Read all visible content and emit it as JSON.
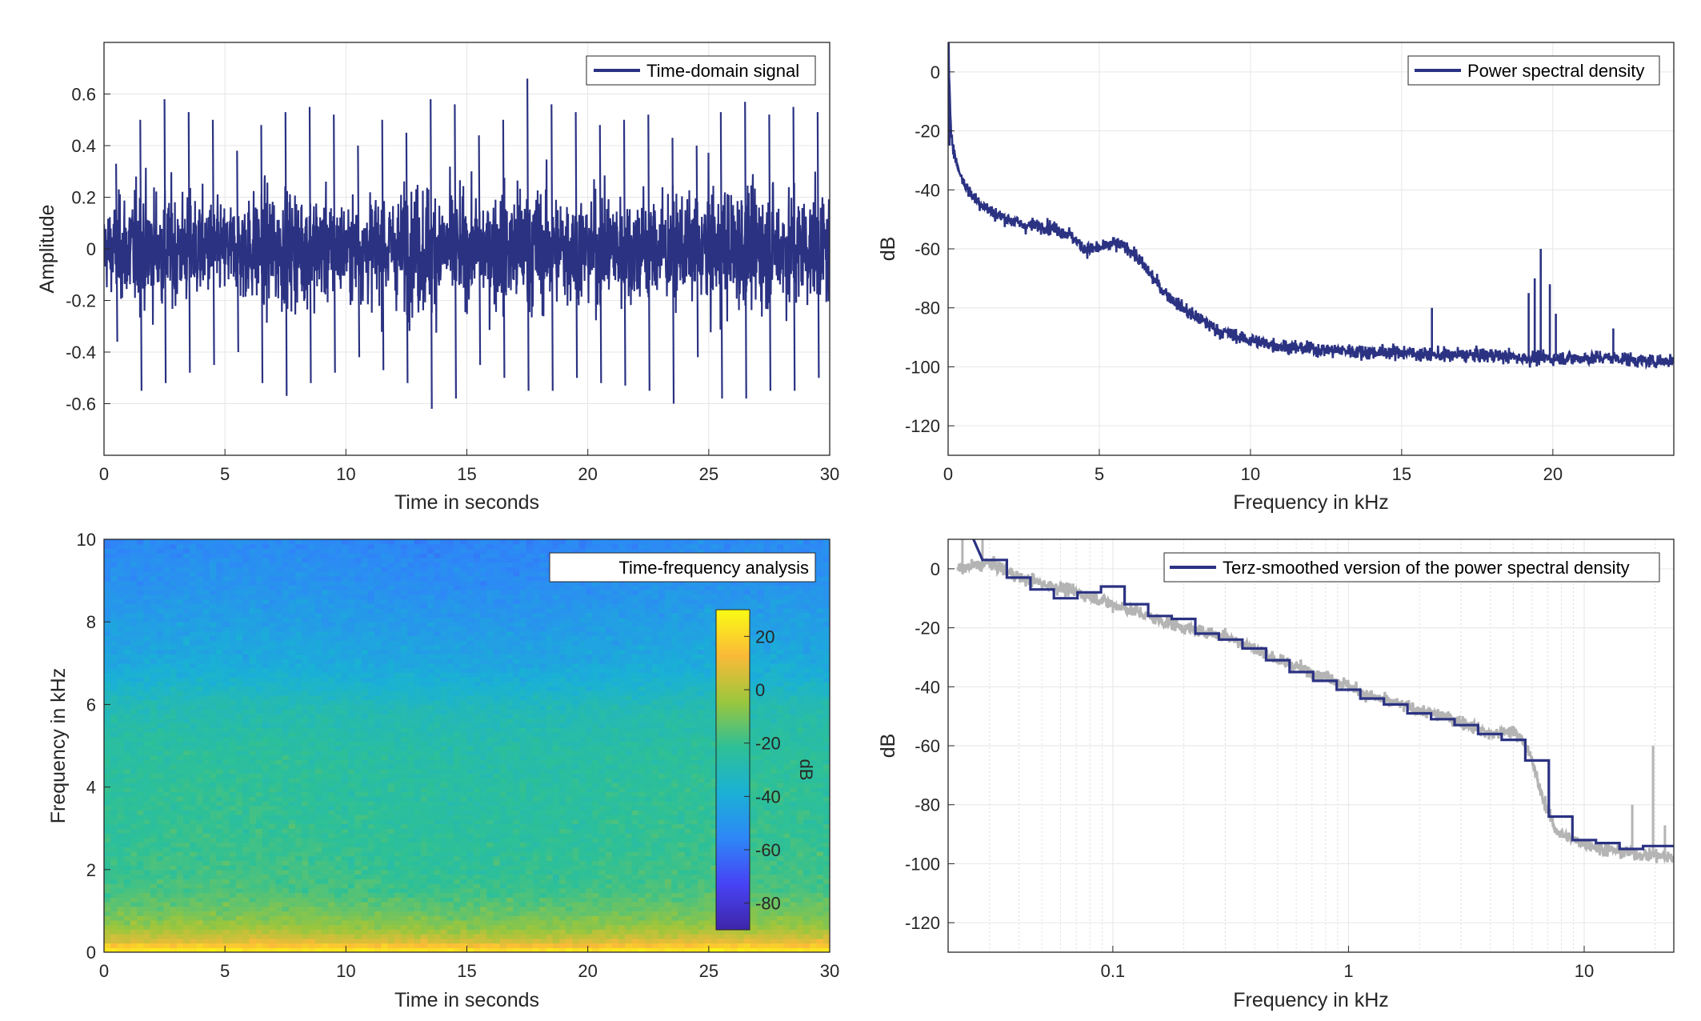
{
  "colors": {
    "series": "#2b3282",
    "raw_psd": "#b4b4b4",
    "grid": "#e6e6e6",
    "axes": "#262626",
    "colormap": [
      "#3e26a8",
      "#4743f5",
      "#2e87f7",
      "#1ab1d5",
      "#2ec096",
      "#9cc63c",
      "#fbba38",
      "#f9fb14"
    ]
  },
  "chart_data": [
    {
      "id": "time",
      "type": "line",
      "xlabel": "Time in seconds",
      "ylabel": "Amplitude",
      "xlim": [
        0,
        30
      ],
      "ylim": [
        -0.8,
        0.8
      ],
      "xticks": [
        0,
        5,
        10,
        15,
        20,
        25,
        30
      ],
      "yticks": [
        -0.6,
        -0.4,
        -0.2,
        0,
        0.2,
        0.4,
        0.6
      ],
      "grid": true,
      "legend": {
        "placement": "top-right",
        "entries": [
          "Time-domain signal"
        ]
      },
      "series": [
        {
          "name": "Time-domain signal",
          "description_note": "dense noise signal, envelope (max/min per second) listed",
          "x": [
            0,
            1,
            2,
            3,
            4,
            5,
            6,
            7,
            8,
            9,
            10,
            11,
            12,
            13,
            14,
            15,
            16,
            17,
            18,
            19,
            20,
            21,
            22,
            23,
            24,
            25,
            26,
            27,
            28,
            29,
            30
          ],
          "upper": [
            0.33,
            0.5,
            0.58,
            0.53,
            0.5,
            0.38,
            0.48,
            0.53,
            0.55,
            0.52,
            0.4,
            0.5,
            0.45,
            0.58,
            0.56,
            0.44,
            0.5,
            0.66,
            0.56,
            0.53,
            0.48,
            0.5,
            0.52,
            0.43,
            0.4,
            0.53,
            0.57,
            0.52,
            0.55,
            0.53,
            0.52
          ],
          "lower": [
            -0.36,
            -0.55,
            -0.52,
            -0.48,
            -0.45,
            -0.4,
            -0.52,
            -0.57,
            -0.52,
            -0.48,
            -0.42,
            -0.47,
            -0.52,
            -0.62,
            -0.58,
            -0.45,
            -0.5,
            -0.55,
            -0.55,
            -0.5,
            -0.52,
            -0.53,
            -0.55,
            -0.6,
            -0.42,
            -0.58,
            -0.58,
            -0.55,
            -0.55,
            -0.5,
            -0.45
          ]
        }
      ]
    },
    {
      "id": "psd",
      "type": "line",
      "xlabel": "Frequency in kHz",
      "ylabel": "dB",
      "xlim": [
        0,
        24
      ],
      "ylim": [
        -130,
        10
      ],
      "xticks": [
        0,
        5,
        10,
        15,
        20
      ],
      "yticks": [
        -120,
        -100,
        -80,
        -60,
        -40,
        -20,
        0
      ],
      "grid": true,
      "legend": {
        "placement": "top-right",
        "entries": [
          "Power spectral density"
        ]
      },
      "series": [
        {
          "name": "Power spectral density",
          "x": [
            0.02,
            0.1,
            0.2,
            0.3,
            0.5,
            0.8,
            1,
            1.5,
            2,
            2.5,
            3,
            3.5,
            4,
            4.5,
            5,
            5.5,
            6,
            6.5,
            7,
            7.5,
            8,
            8.5,
            9,
            10,
            11,
            12,
            13,
            14,
            15,
            16,
            17,
            18,
            19,
            20,
            21,
            22,
            23,
            24
          ],
          "y": [
            0,
            -20,
            -27,
            -32,
            -37,
            -42,
            -44,
            -48,
            -50,
            -52,
            -52,
            -53,
            -55,
            -60,
            -60,
            -58,
            -60,
            -66,
            -73,
            -78,
            -82,
            -85,
            -88,
            -91,
            -93,
            -94,
            -94.5,
            -95,
            -95,
            -96,
            -96,
            -96,
            -97,
            -97,
            -97,
            -97,
            -98,
            -98
          ],
          "spikes": [
            {
              "x": 16.0,
              "y": -80
            },
            {
              "x": 19.2,
              "y": -75
            },
            {
              "x": 19.4,
              "y": -70
            },
            {
              "x": 19.6,
              "y": -60
            },
            {
              "x": 19.9,
              "y": -72
            },
            {
              "x": 20.1,
              "y": -82
            },
            {
              "x": 22.0,
              "y": -87
            }
          ]
        }
      ]
    },
    {
      "id": "spectrogram",
      "type": "heatmap",
      "xlabel": "Time in seconds",
      "ylabel": "Frequency in kHz",
      "xlim": [
        0,
        30
      ],
      "ylim": [
        0,
        10
      ],
      "xticks": [
        0,
        5,
        10,
        15,
        20,
        25,
        30
      ],
      "yticks": [
        0,
        2,
        4,
        6,
        8,
        10
      ],
      "legend": {
        "placement": "top-right",
        "entries": [
          "Time-frequency analysis"
        ]
      },
      "colorbar": {
        "label": "dB",
        "range": [
          -90,
          30
        ],
        "ticks": [
          -80,
          -60,
          -40,
          -20,
          0,
          20
        ]
      },
      "frequency_profile": {
        "freq_khz": [
          0,
          0.3,
          0.6,
          1,
          1.5,
          2,
          3,
          4,
          5,
          6,
          6.5,
          7,
          8,
          9,
          10
        ],
        "level_db": [
          28,
          5,
          -5,
          -12,
          -18,
          -20,
          -22,
          -23,
          -25,
          -30,
          -37,
          -42,
          -47,
          -52,
          -55
        ]
      }
    },
    {
      "id": "terz",
      "type": "line",
      "xlabel": "Frequency in kHz",
      "ylabel": "dB",
      "xscale": "log",
      "xlim": [
        0.02,
        24
      ],
      "ylim": [
        -130,
        10
      ],
      "xticks": [
        0.1,
        1,
        10
      ],
      "xticklabels": [
        "0.1",
        "1",
        "10"
      ],
      "yticks": [
        -120,
        -100,
        -80,
        -60,
        -40,
        -20,
        0
      ],
      "grid": true,
      "legend": {
        "placement": "top-right",
        "entries": [
          "Terz-smoothed version of the power spectral density"
        ]
      },
      "series": [
        {
          "name": "Terz-smoothed version of the power spectral density",
          "edges_khz": [
            0.028,
            0.0355,
            0.0447,
            0.0562,
            0.0708,
            0.0891,
            0.1122,
            0.1413,
            0.1778,
            0.2239,
            0.2818,
            0.3548,
            0.4467,
            0.5623,
            0.7079,
            0.8913,
            1.122,
            1.413,
            1.778,
            2.239,
            2.818,
            3.548,
            4.467,
            5.623,
            7.079,
            8.913,
            11.22,
            14.13,
            17.78,
            22.39,
            24
          ],
          "levels_db": [
            3,
            -3,
            -7,
            -10,
            -8,
            -6,
            -12,
            -16,
            -17,
            -22,
            -24,
            -27,
            -31,
            -35,
            -38,
            -41,
            -44,
            -46,
            -49,
            -51,
            -53,
            -56,
            -58,
            -65,
            -84,
            -92,
            -93,
            -95,
            -94,
            -94
          ]
        },
        {
          "name": "raw-psd",
          "x": [
            0.022,
            0.03,
            0.04,
            0.05,
            0.07,
            0.1,
            0.12,
            0.15,
            0.2,
            0.3,
            0.4,
            0.5,
            0.7,
            0.9,
            1.2,
            1.5,
            2,
            2.5,
            3,
            4,
            5,
            5.5,
            6,
            6.5,
            7,
            7.5,
            8,
            9,
            10,
            12,
            15,
            18,
            20,
            22,
            24
          ],
          "y": [
            0,
            2,
            -3,
            -5,
            -8,
            -12,
            -14,
            -17,
            -20,
            -23,
            -27,
            -31,
            -35,
            -38,
            -43,
            -45,
            -48,
            -50,
            -52,
            -56,
            -55,
            -58,
            -65,
            -75,
            -82,
            -88,
            -90,
            -92,
            -93,
            -95,
            -96,
            -97,
            -97,
            -98,
            -98
          ],
          "spikes": [
            {
              "x": 0.023,
              "y": 10
            },
            {
              "x": 0.028,
              "y": 10
            },
            {
              "x": 0.1,
              "y": -15
            },
            {
              "x": 0.3,
              "y": -20
            },
            {
              "x": 16,
              "y": -80
            },
            {
              "x": 19.6,
              "y": -60
            },
            {
              "x": 22,
              "y": -87
            }
          ]
        }
      ]
    }
  ]
}
